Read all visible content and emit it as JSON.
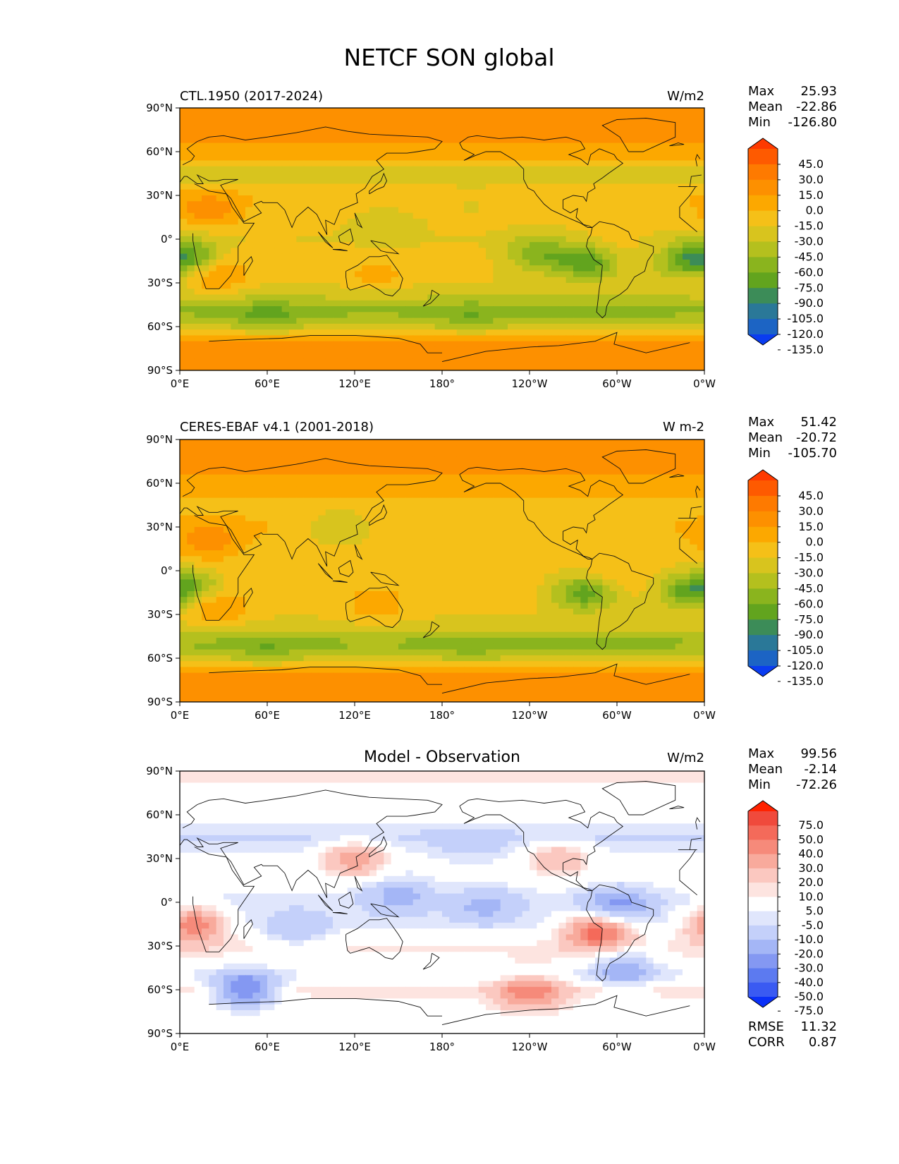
{
  "title": "NETCF SON global",
  "xticks": [
    "0°E",
    "60°E",
    "120°E",
    "180°",
    "120°W",
    "60°W",
    "0°W"
  ],
  "yticks": [
    "90°N",
    "60°N",
    "30°N",
    "0°",
    "30°S",
    "60°S",
    "90°S"
  ],
  "panels": [
    {
      "title_left": "CTL.1950 (2017-2024)",
      "title_center": "",
      "units": "W/m2",
      "stats": [
        {
          "label": "Max",
          "value": "25.93"
        },
        {
          "label": "Mean",
          "value": "-22.86"
        },
        {
          "label": "Min",
          "value": "-126.80"
        }
      ],
      "colorbar": {
        "labels": [
          "45.0",
          "30.0",
          "15.0",
          "0.0",
          "-15.0",
          "-30.0",
          "-45.0",
          "-60.0",
          "-75.0",
          "-90.0",
          "-105.0",
          "-120.0",
          "-135.0"
        ],
        "colors": [
          "#fe3a00",
          "#fe5a00",
          "#fe7a00",
          "#fd9000",
          "#fca800",
          "#f5c018",
          "#d8c41e",
          "#b4c01e",
          "#8ab41e",
          "#62a41e",
          "#3c8c58",
          "#2a7898",
          "#1c64c4",
          "#0a3cf0"
        ]
      },
      "footer": []
    },
    {
      "title_left": "CERES-EBAF v4.1 (2001-2018)",
      "title_center": "",
      "units": "W m-2",
      "stats": [
        {
          "label": "Max",
          "value": "51.42"
        },
        {
          "label": "Mean",
          "value": "-20.72"
        },
        {
          "label": "Min",
          "value": "-105.70"
        }
      ],
      "colorbar": {
        "labels": [
          "45.0",
          "30.0",
          "15.0",
          "0.0",
          "-15.0",
          "-30.0",
          "-45.0",
          "-60.0",
          "-75.0",
          "-90.0",
          "-105.0",
          "-120.0",
          "-135.0"
        ],
        "colors": [
          "#fe3a00",
          "#fe5a00",
          "#fe7a00",
          "#fd9000",
          "#fca800",
          "#f5c018",
          "#d8c41e",
          "#b4c01e",
          "#8ab41e",
          "#62a41e",
          "#3c8c58",
          "#2a7898",
          "#1c64c4",
          "#0a3cf0"
        ]
      },
      "footer": []
    },
    {
      "title_left": "",
      "title_center": "Model - Observation",
      "units": "W/m2",
      "stats": [
        {
          "label": "Max",
          "value": "99.56"
        },
        {
          "label": "Mean",
          "value": "-2.14"
        },
        {
          "label": "Min",
          "value": "-72.26"
        }
      ],
      "colorbar": {
        "labels": [
          "75.0",
          "50.0",
          "40.0",
          "30.0",
          "20.0",
          "10.0",
          "5.0",
          "-5.0",
          "-10.0",
          "-20.0",
          "-30.0",
          "-40.0",
          "-50.0",
          "-75.0"
        ],
        "colors": [
          "#ff2200",
          "#f04a3c",
          "#f46a5a",
          "#f68a7a",
          "#f8aa9c",
          "#fbc8c0",
          "#fde4e0",
          "#ffffff",
          "#e0e6fc",
          "#c4d0fa",
          "#a4b6f6",
          "#8498f2",
          "#5c7af0",
          "#3a5af2",
          "#0a30f8"
        ]
      },
      "footer": [
        {
          "label": "RMSE",
          "value": "11.32"
        },
        {
          "label": "CORR",
          "value": "0.87"
        }
      ]
    }
  ],
  "chart_data": [
    {
      "type": "heatmap",
      "title": "CTL.1950 (2017-2024)",
      "field": "NETCF",
      "season": "SON",
      "units": "W/m2",
      "xlim": [
        0,
        360
      ],
      "ylim": [
        -90,
        90
      ],
      "stats": {
        "max": 25.93,
        "mean": -22.86,
        "min": -126.8
      },
      "contour_levels": [
        -135,
        -120,
        -105,
        -90,
        -75,
        -60,
        -45,
        -30,
        -15,
        0,
        15,
        30,
        45
      ],
      "bands": [
        {
          "lat": 90,
          "value": 15
        },
        {
          "lat": 75,
          "value": 10
        },
        {
          "lat": 60,
          "value": -5
        },
        {
          "lat": 45,
          "value": -40
        },
        {
          "lat": 30,
          "value": -18
        },
        {
          "lat": 15,
          "value": -25
        },
        {
          "lat": 0,
          "value": -30
        },
        {
          "lat": -15,
          "value": -25
        },
        {
          "lat": -30,
          "value": -30
        },
        {
          "lat": -40,
          "value": -45
        },
        {
          "lat": -50,
          "value": -65
        },
        {
          "lat": -60,
          "value": -40
        },
        {
          "lat": -70,
          "value": 5
        },
        {
          "lat": -90,
          "value": 0
        }
      ],
      "features": [
        {
          "lon": 280,
          "lat": -15,
          "value": -95
        },
        {
          "lon": 245,
          "lat": -10,
          "value": -70
        },
        {
          "lon": 5,
          "lat": -12,
          "value": -80
        },
        {
          "lon": 345,
          "lat": -15,
          "value": -65
        },
        {
          "lon": 20,
          "lat": 20,
          "value": 10
        },
        {
          "lon": 25,
          "lat": -25,
          "value": 5
        },
        {
          "lon": 135,
          "lat": -25,
          "value": -10
        },
        {
          "lon": 290,
          "lat": -8,
          "value": -10
        },
        {
          "lon": 60,
          "lat": -55,
          "value": -75
        },
        {
          "lon": 200,
          "lat": -55,
          "value": -70
        },
        {
          "lon": 140,
          "lat": 10,
          "value": -45
        },
        {
          "lon": 200,
          "lat": 25,
          "value": -30
        }
      ]
    },
    {
      "type": "heatmap",
      "title": "CERES-EBAF v4.1 (2001-2018)",
      "field": "NETCF",
      "season": "SON",
      "units": "W m-2",
      "xlim": [
        0,
        360
      ],
      "ylim": [
        -90,
        90
      ],
      "stats": {
        "max": 51.42,
        "mean": -20.72,
        "min": -105.7
      },
      "contour_levels": [
        -135,
        -120,
        -105,
        -90,
        -75,
        -60,
        -45,
        -30,
        -15,
        0,
        15,
        30,
        45
      ],
      "bands": [
        {
          "lat": 90,
          "value": 15
        },
        {
          "lat": 75,
          "value": 8
        },
        {
          "lat": 60,
          "value": -5
        },
        {
          "lat": 45,
          "value": -18
        },
        {
          "lat": 30,
          "value": -15
        },
        {
          "lat": 15,
          "value": -22
        },
        {
          "lat": 0,
          "value": -25
        },
        {
          "lat": -15,
          "value": -22
        },
        {
          "lat": -30,
          "value": -28
        },
        {
          "lat": -40,
          "value": -40
        },
        {
          "lat": -50,
          "value": -65
        },
        {
          "lat": -60,
          "value": -40
        },
        {
          "lat": -70,
          "value": 5
        },
        {
          "lat": -90,
          "value": 0
        }
      ],
      "features": [
        {
          "lon": 278,
          "lat": -15,
          "value": -85
        },
        {
          "lon": 5,
          "lat": -12,
          "value": -75
        },
        {
          "lon": 345,
          "lat": -15,
          "value": -60
        },
        {
          "lon": 20,
          "lat": 20,
          "value": 12
        },
        {
          "lon": 25,
          "lat": -25,
          "value": 5
        },
        {
          "lon": 135,
          "lat": -25,
          "value": -8
        },
        {
          "lon": 295,
          "lat": -5,
          "value": -10
        },
        {
          "lon": 110,
          "lat": 30,
          "value": -45
        },
        {
          "lon": 60,
          "lat": -55,
          "value": -70
        },
        {
          "lon": 200,
          "lat": -55,
          "value": -65
        }
      ]
    },
    {
      "type": "heatmap",
      "title": "Model - Observation",
      "field": "NETCF",
      "season": "SON",
      "units": "W/m2",
      "xlim": [
        0,
        360
      ],
      "ylim": [
        -90,
        90
      ],
      "stats": {
        "max": 99.56,
        "mean": -2.14,
        "min": -72.26,
        "rmse": 11.32,
        "corr": 0.87
      },
      "contour_levels": [
        -75,
        -50,
        -40,
        -30,
        -20,
        -10,
        -5,
        5,
        10,
        20,
        30,
        40,
        50,
        75
      ],
      "bands": [
        {
          "lat": 90,
          "value": 6
        },
        {
          "lat": 75,
          "value": 4
        },
        {
          "lat": 60,
          "value": 0
        },
        {
          "lat": 45,
          "value": -12
        },
        {
          "lat": 30,
          "value": -3
        },
        {
          "lat": 15,
          "value": -2
        },
        {
          "lat": 0,
          "value": -8
        },
        {
          "lat": -15,
          "value": -6
        },
        {
          "lat": -30,
          "value": 6
        },
        {
          "lat": -40,
          "value": 4
        },
        {
          "lat": -50,
          "value": -6
        },
        {
          "lat": -60,
          "value": 8
        },
        {
          "lat": -70,
          "value": 2
        },
        {
          "lat": -90,
          "value": 0
        }
      ],
      "features": [
        {
          "lon": 287,
          "lat": -20,
          "value": 45
        },
        {
          "lon": 10,
          "lat": -15,
          "value": 35
        },
        {
          "lon": 120,
          "lat": 30,
          "value": 28
        },
        {
          "lon": 300,
          "lat": -2,
          "value": -35
        },
        {
          "lon": 210,
          "lat": -3,
          "value": -25
        },
        {
          "lon": 45,
          "lat": -60,
          "value": -35
        },
        {
          "lon": 240,
          "lat": -62,
          "value": 40
        },
        {
          "lon": 150,
          "lat": 5,
          "value": -25
        },
        {
          "lon": 200,
          "lat": 40,
          "value": -18
        },
        {
          "lon": 260,
          "lat": 30,
          "value": 20
        },
        {
          "lon": 305,
          "lat": -45,
          "value": -28
        },
        {
          "lon": 80,
          "lat": -20,
          "value": -18
        }
      ]
    }
  ]
}
